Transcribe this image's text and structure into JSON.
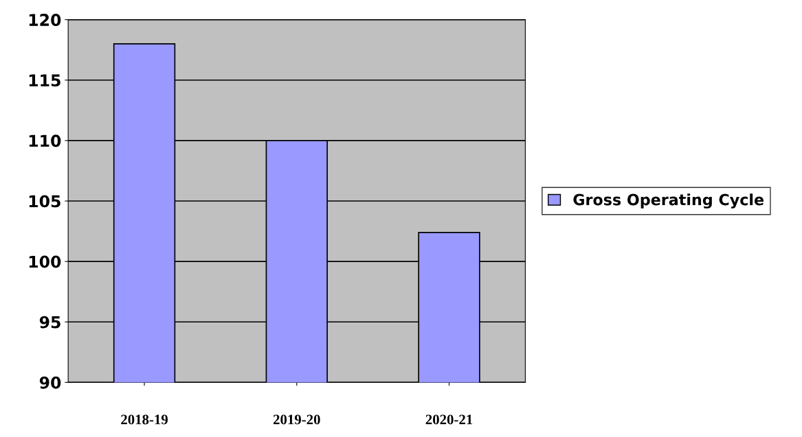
{
  "chart_data": {
    "type": "bar",
    "categories": [
      "2018-19",
      "2019-20",
      "2020-21"
    ],
    "series": [
      {
        "name": "Gross Operating Cycle",
        "color": "#9999ff",
        "values": [
          118,
          110,
          102.4
        ]
      }
    ],
    "ylim": [
      90,
      120
    ],
    "yticks": [
      90,
      95,
      100,
      105,
      110,
      115,
      120
    ],
    "grid": "y",
    "legend": "right"
  }
}
